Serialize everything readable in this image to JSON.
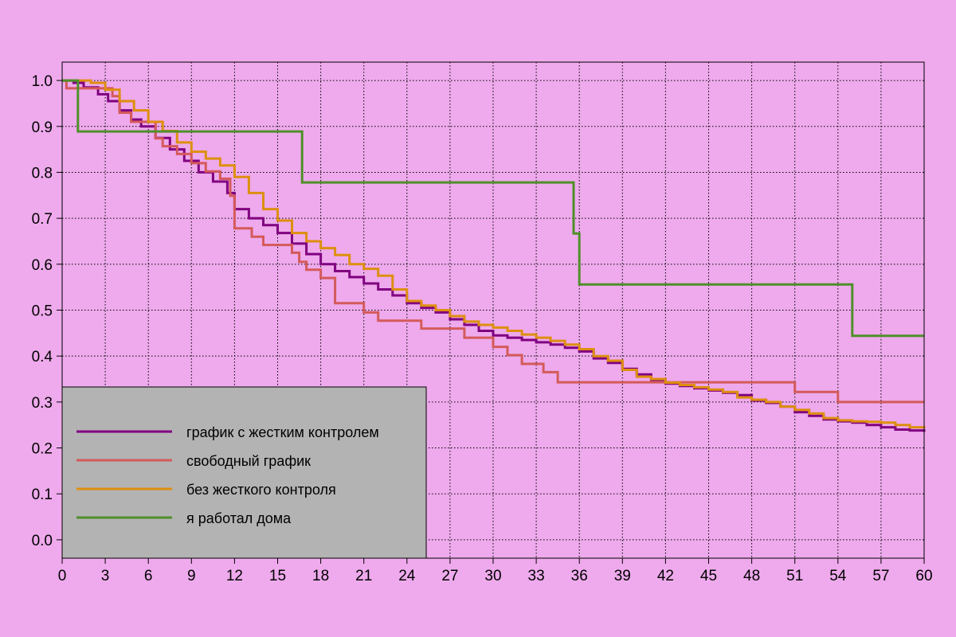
{
  "chart_data": {
    "type": "line",
    "step": true,
    "title": "",
    "xlabel": "",
    "ylabel": "",
    "xlim": [
      0,
      60
    ],
    "ylim": [
      -0.04,
      1.04
    ],
    "xticks": [
      "0",
      "3",
      "6",
      "9",
      "12",
      "15",
      "18",
      "21",
      "24",
      "27",
      "30",
      "33",
      "36",
      "39",
      "42",
      "45",
      "48",
      "51",
      "54",
      "57",
      "60"
    ],
    "yticks": [
      "0.0",
      "0.1",
      "0.2",
      "0.3",
      "0.4",
      "0.5",
      "0.6",
      "0.7",
      "0.8",
      "0.9",
      "1.0"
    ],
    "grid": true,
    "legend_position": "bottom-left",
    "colors": {
      "background": "#eeaaec",
      "legend_box": "#b3b3b3"
    },
    "series": [
      {
        "name": "график с жестким контролем",
        "color": "#800080",
        "x": [
          0,
          0.8,
          1.5,
          2.5,
          3.2,
          4.0,
          4.8,
          5.5,
          6.5,
          7.5,
          8.5,
          9.5,
          10.5,
          11.5,
          12.0,
          13.0,
          14.0,
          15.0,
          16.0,
          17.0,
          18.0,
          19.0,
          20.0,
          21.0,
          22.0,
          23.0,
          24.0,
          25.0,
          26.0,
          27.0,
          28.0,
          29.0,
          30.0,
          31.0,
          32.0,
          33.0,
          34.0,
          35.0,
          36.0,
          37.0,
          38.0,
          39.0,
          40.0,
          41.0,
          42.0,
          43.0,
          44.0,
          45.0,
          46.0,
          47.0,
          48.0,
          49.0,
          50.0,
          51.0,
          52.0,
          53.0,
          54.0,
          55.0,
          56.0,
          57.0,
          58.0,
          59.0,
          60.0
        ],
        "y": [
          1.0,
          0.995,
          0.985,
          0.97,
          0.955,
          0.935,
          0.915,
          0.9,
          0.875,
          0.85,
          0.825,
          0.8,
          0.78,
          0.755,
          0.72,
          0.7,
          0.685,
          0.668,
          0.645,
          0.622,
          0.6,
          0.585,
          0.572,
          0.558,
          0.545,
          0.532,
          0.515,
          0.505,
          0.495,
          0.48,
          0.468,
          0.455,
          0.445,
          0.44,
          0.435,
          0.43,
          0.425,
          0.418,
          0.41,
          0.395,
          0.385,
          0.372,
          0.36,
          0.348,
          0.34,
          0.335,
          0.33,
          0.325,
          0.32,
          0.315,
          0.303,
          0.298,
          0.29,
          0.278,
          0.27,
          0.262,
          0.258,
          0.255,
          0.25,
          0.245,
          0.24,
          0.238,
          0.235
        ]
      },
      {
        "name": "свободный график",
        "color": "#d45a5a",
        "x": [
          0,
          0.3,
          3.5,
          4.0,
          4.8,
          6.5,
          7.0,
          8.0,
          9.0,
          10.0,
          11.0,
          11.7,
          12.0,
          13.2,
          14.0,
          16.0,
          16.5,
          17.0,
          18.0,
          19.0,
          21.0,
          22.0,
          25.0,
          26.0,
          28.0,
          30.0,
          31.0,
          32.0,
          33.5,
          34.5,
          41.0,
          42.0,
          51.0,
          54.0,
          60.0
        ],
        "y": [
          1.0,
          0.983,
          0.966,
          0.93,
          0.91,
          0.874,
          0.857,
          0.84,
          0.82,
          0.802,
          0.786,
          0.749,
          0.678,
          0.66,
          0.642,
          0.625,
          0.605,
          0.588,
          0.57,
          0.515,
          0.495,
          0.477,
          0.46,
          0.46,
          0.44,
          0.42,
          0.402,
          0.383,
          0.365,
          0.343,
          0.343,
          0.343,
          0.322,
          0.3,
          0.3
        ]
      },
      {
        "name": "без жесткого контроля",
        "color": "#dd8f0e",
        "x": [
          0,
          1.0,
          2.0,
          3.0,
          4.0,
          5.0,
          6.0,
          7.0,
          8.0,
          9.0,
          10.0,
          11.0,
          12.0,
          13.0,
          14.0,
          15.0,
          16.0,
          17.0,
          18.0,
          19.0,
          20.0,
          21.0,
          22.0,
          23.0,
          24.0,
          25.0,
          26.0,
          27.0,
          28.0,
          29.0,
          30.0,
          31.0,
          32.0,
          33.0,
          34.0,
          35.0,
          36.0,
          37.0,
          38.0,
          39.0,
          40.0,
          41.0,
          42.0,
          43.0,
          44.0,
          45.0,
          46.0,
          47.0,
          48.0,
          49.0,
          50.0,
          51.0,
          52.0,
          53.0,
          54.0,
          55.0,
          56.0,
          57.0,
          58.0,
          59.0,
          60.0
        ],
        "y": [
          1.0,
          1.0,
          0.995,
          0.98,
          0.955,
          0.935,
          0.91,
          0.89,
          0.865,
          0.845,
          0.83,
          0.815,
          0.79,
          0.755,
          0.72,
          0.695,
          0.668,
          0.65,
          0.635,
          0.62,
          0.6,
          0.59,
          0.575,
          0.545,
          0.52,
          0.51,
          0.5,
          0.487,
          0.475,
          0.468,
          0.462,
          0.455,
          0.447,
          0.44,
          0.433,
          0.425,
          0.415,
          0.4,
          0.39,
          0.37,
          0.355,
          0.35,
          0.342,
          0.337,
          0.332,
          0.327,
          0.322,
          0.31,
          0.305,
          0.3,
          0.29,
          0.283,
          0.275,
          0.265,
          0.26,
          0.258,
          0.257,
          0.255,
          0.25,
          0.245,
          0.243
        ]
      },
      {
        "name": "я работал дома",
        "color": "#4f8f2a",
        "x": [
          0,
          1.1,
          16.7,
          35.6,
          36.0,
          55.0,
          60.0
        ],
        "y": [
          1.0,
          0.889,
          0.778,
          0.667,
          0.556,
          0.444,
          0.444
        ]
      }
    ]
  }
}
